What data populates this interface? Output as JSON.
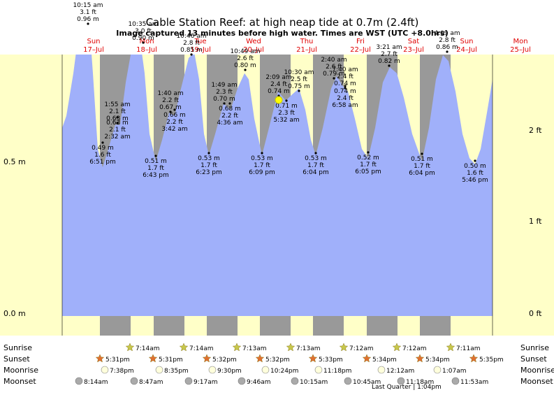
{
  "chart_data": {
    "type": "area",
    "title": "Cable Station Reef: at high  neap tide at 0.7m (2.4ft)",
    "subtitle": "Image captured 13 minutes before high water. Times are WST (UTC +8.0hrs)",
    "y_ticks_m": [
      "0.0 m",
      "0.5 m"
    ],
    "y_ticks_ft": [
      "0 ft",
      "1 ft",
      "2 ft"
    ],
    "days": [
      {
        "dow": "Sun",
        "date": "17–Jul"
      },
      {
        "dow": "Mon",
        "date": "18–Jul"
      },
      {
        "dow": "Tue",
        "date": "19–Jul"
      },
      {
        "dow": "Wed",
        "date": "20–Jul"
      },
      {
        "dow": "Thu",
        "date": "21–Jul"
      },
      {
        "dow": "Fri",
        "date": "22–Jul"
      },
      {
        "dow": "Sat",
        "date": "23–Jul"
      },
      {
        "dow": "Sun",
        "date": "24–Jul"
      },
      {
        "dow": "Mon",
        "date": "25–Jul"
      }
    ],
    "tides": [
      {
        "time": "10:15 am",
        "ft": "3.1 ft",
        "m": "0.96 m",
        "value": 0.96,
        "type": "high"
      },
      {
        "time": "1:55 am",
        "ft": "2.1 ft",
        "m": "0.63 m",
        "value": 0.63,
        "type": "high"
      },
      {
        "time": "2:32 am",
        "ft": "2.1 ft",
        "m": "0.63 m",
        "value": 0.63,
        "type": "low"
      },
      {
        "time": "6:51 pm",
        "ft": "1.6 ft",
        "m": "0.49 m",
        "value": 0.49,
        "type": "low"
      },
      {
        "time": "10:35 am",
        "ft": "3.0 ft",
        "m": "0.90 m",
        "value": 0.9,
        "type": "high"
      },
      {
        "time": "1:40 am",
        "ft": "2.2 ft",
        "m": "0.67 m",
        "value": 0.67,
        "type": "high"
      },
      {
        "time": "3:42 am",
        "ft": "2.2 ft",
        "m": "0.66 m",
        "value": 0.66,
        "type": "low"
      },
      {
        "time": "6:43 pm",
        "ft": "1.7 ft",
        "m": "0.51 m",
        "value": 0.51,
        "type": "low"
      },
      {
        "time": "10:46 am",
        "ft": "2.8 ft",
        "m": "0.85 m",
        "value": 0.85,
        "type": "high"
      },
      {
        "time": "1:49 am",
        "ft": "2.3 ft",
        "m": "0.70 m",
        "value": 0.7,
        "type": "high"
      },
      {
        "time": "4:36 am",
        "ft": "2.2 ft",
        "m": "0.68 m",
        "value": 0.68,
        "type": "low"
      },
      {
        "time": "6:23 pm",
        "ft": "1.7 ft",
        "m": "0.53 m",
        "value": 0.53,
        "type": "low"
      },
      {
        "time": "10:49 am",
        "ft": "2.6 ft",
        "m": "0.80 m",
        "value": 0.8,
        "type": "high"
      },
      {
        "time": "2:09 am",
        "ft": "2.4 ft",
        "m": "0.74 m",
        "value": 0.74,
        "type": "high"
      },
      {
        "time": "5:32 am",
        "ft": "2.3 ft",
        "m": "0.71 m",
        "value": 0.71,
        "type": "low"
      },
      {
        "time": "6:09 pm",
        "ft": "1.7 ft",
        "m": "0.53 m",
        "value": 0.53,
        "type": "low"
      },
      {
        "time": "10:30 am",
        "ft": "2.5 ft",
        "m": "0.75 m",
        "value": 0.75,
        "type": "high"
      },
      {
        "time": "6:04 pm",
        "ft": "1.7 ft",
        "m": "0.53 m",
        "value": 0.53,
        "type": "low"
      },
      {
        "time": "2:40 am",
        "ft": "2.6 ft",
        "m": "0.79 m",
        "value": 0.79,
        "type": "high"
      },
      {
        "time": "7:40 am",
        "ft": "2.4 ft",
        "m": "0.74 m",
        "value": 0.74,
        "type": "low"
      },
      {
        "time": "6:58 am",
        "ft": "2.4 ft",
        "m": "0.74 m",
        "value": 0.74,
        "type": "high"
      },
      {
        "time": "6:05 pm",
        "ft": "1.7 ft",
        "m": "0.52 m",
        "value": 0.52,
        "type": "low"
      },
      {
        "time": "3:21 am",
        "ft": "2.7 ft",
        "m": "0.82 m",
        "value": 0.82,
        "type": "high"
      },
      {
        "time": "6:04 pm",
        "ft": "1.7 ft",
        "m": "0.51 m",
        "value": 0.51,
        "type": "low"
      },
      {
        "time": "4:09 am",
        "ft": "2.8 ft",
        "m": "0.86 m",
        "value": 0.86,
        "type": "high"
      },
      {
        "time": "5:46 pm",
        "ft": "1.6 ft",
        "m": "0.50 m",
        "value": 0.5,
        "type": "low"
      }
    ],
    "current_level_m": 0.7,
    "rows": {
      "sunrise_label": "Sunrise",
      "sunset_label": "Sunset",
      "moonrise_label": "Moonrise",
      "moonset_label": "Moonset",
      "sunrise": [
        "7:14am",
        "7:14am",
        "7:13am",
        "7:13am",
        "7:12am",
        "7:12am",
        "7:11am"
      ],
      "sunset": [
        "5:31pm",
        "5:31pm",
        "5:32pm",
        "5:32pm",
        "5:33pm",
        "5:34pm",
        "5:34pm",
        "5:35pm"
      ],
      "moonrise": [
        "7:38pm",
        "8:35pm",
        "9:30pm",
        "10:24pm",
        "11:18pm",
        "12:12am",
        "1:07am"
      ],
      "moonset": [
        "8:14am",
        "8:47am",
        "9:17am",
        "9:46am",
        "10:15am",
        "10:45am",
        "11:18am",
        "11:53am"
      ],
      "moon_phase": "Last Quarter | 1:04pm"
    },
    "colors": {
      "water": "#a0b0fa",
      "day": "#ffffc8",
      "night": "#999999",
      "sun": "#c8c84b",
      "sunset": "#e07030",
      "day_label": "#e00000"
    }
  }
}
